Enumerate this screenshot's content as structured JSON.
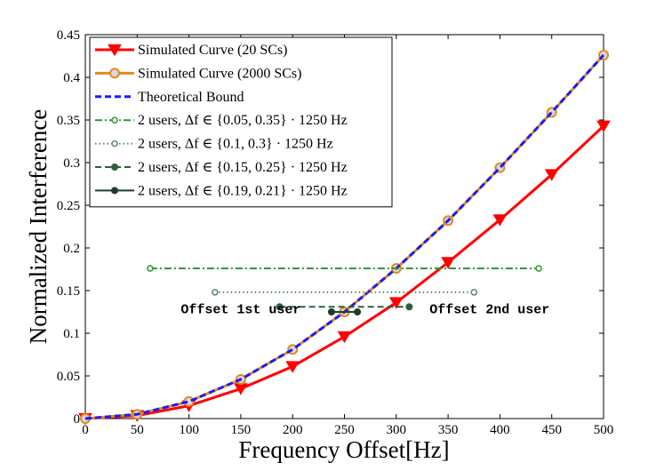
{
  "chart_data": {
    "type": "line",
    "title": "",
    "xlabel": "Frequency Offset[Hz]",
    "ylabel": "Normalized Interference",
    "xlim": [
      0,
      500
    ],
    "ylim": [
      0,
      0.45
    ],
    "xticks": [
      0,
      50,
      100,
      150,
      200,
      250,
      300,
      350,
      400,
      450,
      500
    ],
    "yticks": [
      0,
      0.05,
      0.1,
      0.15,
      0.2,
      0.25,
      0.3,
      0.35,
      0.4,
      0.45
    ],
    "xtick_labels": [
      "0",
      "50",
      "100",
      "150",
      "200",
      "250",
      "300",
      "350",
      "400",
      "450",
      "500"
    ],
    "ytick_labels": [
      "0",
      "0.05",
      "0.1",
      "0.15",
      "0.2",
      "0.25",
      "0.3",
      "0.35",
      "0.4",
      "0.45"
    ],
    "grid": false,
    "legend_position": "top-left",
    "series": [
      {
        "name": "Simulated Curve (20 SCs)",
        "color": "#ff0000",
        "line": "solid",
        "marker": "triangle-down",
        "x": [
          0,
          50,
          100,
          150,
          200,
          250,
          300,
          350,
          400,
          450,
          500
        ],
        "y": [
          0,
          0.0035,
          0.015,
          0.035,
          0.061,
          0.096,
          0.136,
          0.183,
          0.233,
          0.286,
          0.343
        ]
      },
      {
        "name": "Simulated Curve (2000 SCs)",
        "color": "#e08a1e",
        "line": "solid",
        "marker": "circle",
        "x": [
          0,
          50,
          100,
          150,
          200,
          250,
          300,
          350,
          400,
          450,
          500
        ],
        "y": [
          0,
          0.005,
          0.02,
          0.046,
          0.081,
          0.125,
          0.176,
          0.232,
          0.294,
          0.359,
          0.426
        ]
      },
      {
        "name": "Theoretical Bound",
        "color": "#1a1aff",
        "line": "dashed",
        "marker": "none",
        "x": [
          0,
          50,
          100,
          150,
          200,
          250,
          300,
          350,
          400,
          450,
          500
        ],
        "y": [
          0,
          0.005,
          0.02,
          0.046,
          0.081,
          0.125,
          0.176,
          0.232,
          0.294,
          0.359,
          0.426
        ]
      },
      {
        "name": "2 users, Δf ∈ {0.05, 0.35} · 1250 Hz",
        "color": "#2e9a2e",
        "line": "dashdot",
        "marker": "open-circle",
        "x": [
          62.5,
          437.5
        ],
        "y": [
          0.176,
          0.176
        ]
      },
      {
        "name": "2 users, Δf ∈ {0.1, 0.3} · 1250 Hz",
        "color": "#5a8a6a",
        "line": "dotted",
        "marker": "open-circle",
        "x": [
          125,
          375
        ],
        "y": [
          0.148,
          0.148
        ]
      },
      {
        "name": "2 users, Δf ∈ {0.15, 0.25} · 1250 Hz",
        "color": "#2e5e3e",
        "line": "dashed",
        "marker": "filled-circle",
        "x": [
          187.5,
          312.5
        ],
        "y": [
          0.131,
          0.131
        ]
      },
      {
        "name": "2 users, Δf ∈ {0.19, 0.21} · 1250 Hz",
        "color": "#1e3e2a",
        "line": "solid",
        "marker": "filled-circle",
        "x": [
          237.5,
          262.5
        ],
        "y": [
          0.125,
          0.125
        ]
      }
    ],
    "annotations": [
      {
        "text": "Offset 1st user",
        "x": 150,
        "y": 0.115
      },
      {
        "text": "Offset 2nd user",
        "x": 390,
        "y": 0.115
      }
    ]
  }
}
